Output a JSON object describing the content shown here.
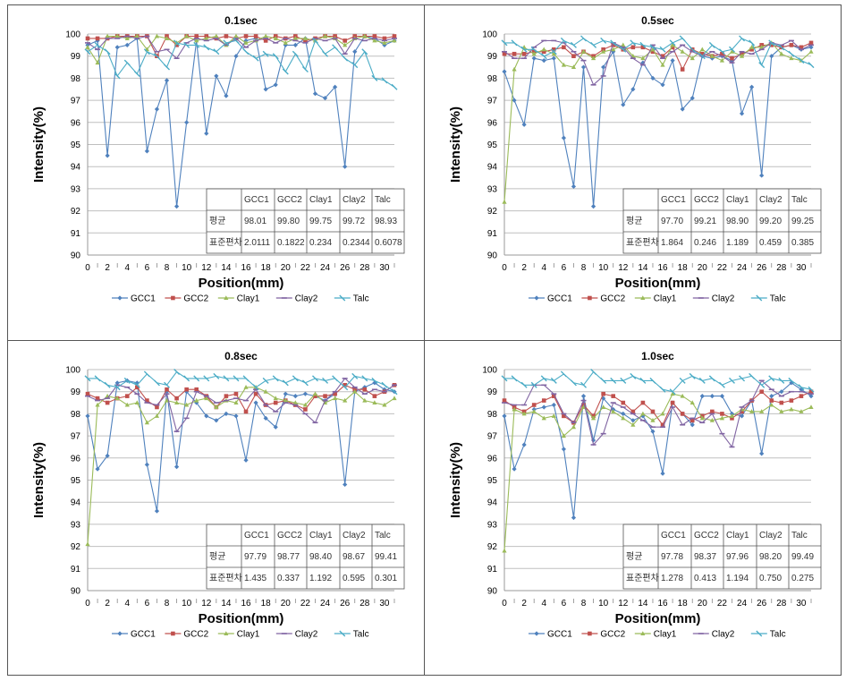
{
  "colors": {
    "GCC1": "#4f81bd",
    "GCC2": "#c0504d",
    "Clay1": "#9bbb59",
    "Clay2": "#8064a2",
    "Talc": "#4bacc6"
  },
  "chart_data": [
    {
      "type": "line",
      "title": "0.1sec",
      "xlabel": "Position(mm)",
      "ylabel": "Intensity(%)",
      "ylim": [
        90,
        100
      ],
      "xlim": [
        0,
        31
      ],
      "x": [
        0,
        1,
        2,
        3,
        4,
        5,
        6,
        7,
        8,
        9,
        10,
        11,
        12,
        13,
        14,
        15,
        16,
        17,
        18,
        19,
        20,
        21,
        22,
        23,
        24,
        25,
        26,
        27,
        28,
        29,
        30,
        31
      ],
      "xticks": [
        0,
        2,
        4,
        6,
        8,
        10,
        12,
        14,
        16,
        18,
        20,
        22,
        24,
        26,
        28,
        30
      ],
      "yticks": [
        90,
        91,
        92,
        93,
        94,
        95,
        96,
        97,
        98,
        99,
        100
      ],
      "grid": true,
      "legend": "bottom",
      "series": [
        {
          "name": "GCC1",
          "values": [
            99.5,
            99.7,
            94.5,
            99.4,
            99.5,
            99.8,
            94.7,
            96.6,
            97.9,
            92.2,
            96.0,
            99.7,
            95.5,
            98.1,
            97.2,
            99.0,
            99.7,
            99.8,
            97.5,
            97.7,
            99.5,
            99.5,
            99.8,
            97.3,
            97.1,
            97.6,
            94.0,
            99.2,
            99.9,
            99.8,
            99.5,
            99.7
          ]
        },
        {
          "name": "GCC2",
          "values": [
            99.8,
            99.8,
            99.8,
            99.9,
            99.9,
            99.9,
            99.9,
            99.0,
            99.9,
            99.5,
            99.9,
            99.9,
            99.9,
            99.8,
            99.9,
            99.8,
            99.9,
            99.9,
            99.7,
            99.9,
            99.8,
            99.9,
            99.7,
            99.8,
            99.9,
            99.9,
            99.7,
            99.9,
            99.9,
            99.9,
            99.8,
            99.9
          ]
        },
        {
          "name": "Clay1",
          "values": [
            99.4,
            98.7,
            99.9,
            99.9,
            99.8,
            99.9,
            99.3,
            99.9,
            99.8,
            99.6,
            99.9,
            99.7,
            99.8,
            99.9,
            99.5,
            99.9,
            99.6,
            99.7,
            99.9,
            99.8,
            99.6,
            99.8,
            99.8,
            99.7,
            99.9,
            99.8,
            99.5,
            99.8,
            99.9,
            99.7,
            99.6,
            99.7
          ]
        },
        {
          "name": "Clay2",
          "values": [
            99.6,
            99.3,
            99.8,
            99.8,
            99.9,
            99.8,
            99.9,
            99.2,
            99.3,
            98.9,
            99.6,
            99.8,
            99.7,
            99.8,
            99.5,
            99.8,
            99.4,
            99.7,
            99.8,
            99.6,
            99.8,
            99.7,
            99.6,
            99.8,
            99.7,
            99.8,
            99.1,
            99.8,
            99.7,
            99.8,
            99.7,
            99.8
          ]
        },
        {
          "name": "Talc",
          "values": [
            99.2,
            99.5,
            99.2,
            98.1,
            98.7,
            98.2,
            99.2,
            99.0,
            98.5,
            99.6,
            99.5,
            99.5,
            99.4,
            99.2,
            99.6,
            99.7,
            99.2,
            98.9,
            99.1,
            99.0,
            98.3,
            99.1,
            98.4,
            99.7,
            99.1,
            99.4,
            98.9,
            98.6,
            99.2,
            98.0,
            97.9,
            97.6
          ]
        }
      ],
      "stats_table": {
        "headers": [
          "",
          "GCC1",
          "GCC2",
          "Clay1",
          "Clay2",
          "Talc"
        ],
        "rows": [
          [
            "평균",
            "98.01",
            "99.80",
            "99.75",
            "99.72",
            "98.93"
          ],
          [
            "표준편차",
            "2.0111",
            "0.1822",
            "0.234",
            "0.2344",
            "0.6078"
          ]
        ]
      }
    },
    {
      "type": "line",
      "title": "0.5sec",
      "xlabel": "Position(mm)",
      "ylabel": "Intensity(%)",
      "ylim": [
        90,
        100
      ],
      "xlim": [
        0,
        31
      ],
      "x": [
        0,
        1,
        2,
        3,
        4,
        5,
        6,
        7,
        8,
        9,
        10,
        11,
        12,
        13,
        14,
        15,
        16,
        17,
        18,
        19,
        20,
        21,
        22,
        23,
        24,
        25,
        26,
        27,
        28,
        29,
        30,
        31
      ],
      "xticks": [
        0,
        2,
        4,
        6,
        8,
        10,
        12,
        14,
        16,
        18,
        20,
        22,
        24,
        26,
        28,
        30
      ],
      "yticks": [
        90,
        91,
        92,
        93,
        94,
        95,
        96,
        97,
        98,
        99,
        100
      ],
      "grid": true,
      "legend": "bottom",
      "series": [
        {
          "name": "GCC1",
          "values": [
            98.3,
            97.0,
            95.9,
            98.9,
            98.8,
            98.9,
            95.3,
            93.1,
            98.5,
            92.2,
            98.5,
            99.2,
            96.8,
            97.5,
            98.7,
            98.0,
            97.7,
            98.8,
            96.6,
            97.1,
            99.0,
            98.9,
            99.0,
            98.8,
            96.4,
            97.6,
            93.6,
            99.0,
            99.4,
            99.5,
            99.3,
            99.4
          ]
        },
        {
          "name": "GCC2",
          "values": [
            99.1,
            99.1,
            99.1,
            99.2,
            99.2,
            99.3,
            99.4,
            99.0,
            99.2,
            99.0,
            99.3,
            99.5,
            99.3,
            99.4,
            99.4,
            99.2,
            99.0,
            99.4,
            98.4,
            99.3,
            99.1,
            99.0,
            99.1,
            98.9,
            99.1,
            99.3,
            99.5,
            99.5,
            99.4,
            99.5,
            99.4,
            99.6
          ]
        },
        {
          "name": "Clay1",
          "values": [
            92.4,
            98.4,
            99.4,
            99.1,
            99.3,
            99.1,
            98.6,
            98.5,
            99.2,
            98.9,
            99.2,
            99.3,
            99.5,
            99.0,
            98.9,
            99.3,
            98.6,
            99.5,
            99.2,
            98.9,
            99.3,
            99.0,
            98.8,
            99.2,
            99.0,
            99.4,
            99.4,
            99.6,
            99.1,
            98.9,
            98.8,
            99.2
          ]
        },
        {
          "name": "Clay2",
          "values": [
            99.2,
            98.9,
            98.9,
            99.4,
            99.7,
            99.7,
            99.6,
            99.2,
            98.8,
            97.7,
            98.1,
            99.6,
            99.4,
            98.9,
            98.6,
            99.5,
            98.9,
            99.2,
            99.5,
            99.2,
            99.0,
            99.2,
            99.0,
            98.7,
            99.2,
            99.1,
            99.3,
            99.6,
            99.5,
            99.7,
            99.3,
            99.5
          ]
        },
        {
          "name": "Talc",
          "values": [
            99.6,
            99.6,
            99.3,
            99.3,
            99.0,
            99.2,
            99.7,
            99.5,
            99.8,
            99.5,
            99.7,
            99.6,
            99.3,
            99.6,
            99.5,
            99.4,
            99.3,
            99.6,
            99.8,
            99.3,
            99.0,
            99.5,
            99.2,
            99.3,
            99.8,
            99.6,
            98.6,
            99.6,
            99.4,
            99.1,
            98.8,
            98.6
          ]
        }
      ],
      "stats_table": {
        "headers": [
          "",
          "GCC1",
          "GCC2",
          "Clay1",
          "Clay2",
          "Talc"
        ],
        "rows": [
          [
            "평균",
            "97.70",
            "99.21",
            "98.90",
            "99.20",
            "99.25"
          ],
          [
            "표준편차",
            "1.864",
            "0.246",
            "1.189",
            "0.459",
            "0.385"
          ]
        ]
      }
    },
    {
      "type": "line",
      "title": "0.8sec",
      "xlabel": "Position(mm)",
      "ylabel": "Intensity(%)",
      "ylim": [
        90,
        100
      ],
      "xlim": [
        0,
        31
      ],
      "x": [
        0,
        1,
        2,
        3,
        4,
        5,
        6,
        7,
        8,
        9,
        10,
        11,
        12,
        13,
        14,
        15,
        16,
        17,
        18,
        19,
        20,
        21,
        22,
        23,
        24,
        25,
        26,
        27,
        28,
        29,
        30,
        31
      ],
      "xticks": [
        0,
        2,
        4,
        6,
        8,
        10,
        12,
        14,
        16,
        18,
        20,
        22,
        24,
        26,
        28,
        30
      ],
      "yticks": [
        90,
        91,
        92,
        93,
        94,
        95,
        96,
        97,
        98,
        99,
        100
      ],
      "grid": true,
      "legend": "bottom",
      "series": [
        {
          "name": "GCC1",
          "values": [
            97.9,
            95.5,
            96.1,
            99.4,
            99.5,
            99.4,
            95.7,
            93.6,
            99.0,
            95.6,
            99.0,
            98.5,
            97.9,
            97.7,
            98.0,
            97.9,
            95.9,
            98.5,
            97.8,
            97.4,
            98.9,
            98.8,
            98.9,
            98.8,
            98.6,
            98.9,
            94.8,
            99.0,
            99.2,
            99.4,
            99.1,
            99.0
          ]
        },
        {
          "name": "GCC2",
          "values": [
            98.9,
            98.7,
            98.5,
            98.7,
            98.8,
            99.2,
            98.6,
            98.3,
            99.1,
            98.7,
            99.1,
            99.1,
            98.8,
            98.3,
            98.8,
            98.9,
            98.1,
            98.9,
            98.4,
            98.5,
            98.6,
            98.4,
            98.2,
            98.8,
            98.8,
            98.9,
            99.3,
            99.1,
            99.1,
            98.8,
            99.0,
            99.3
          ]
        },
        {
          "name": "Clay1",
          "values": [
            92.1,
            98.4,
            98.8,
            98.7,
            98.4,
            98.5,
            97.6,
            97.9,
            98.6,
            98.5,
            98.4,
            98.6,
            98.7,
            98.3,
            98.6,
            98.5,
            99.2,
            99.2,
            99.0,
            98.7,
            98.6,
            98.5,
            98.4,
            98.9,
            98.5,
            98.7,
            98.6,
            99.0,
            98.6,
            98.5,
            98.4,
            98.7
          ]
        },
        {
          "name": "Clay2",
          "values": [
            98.8,
            98.6,
            98.7,
            99.3,
            99.2,
            98.9,
            98.5,
            98.4,
            98.9,
            97.2,
            97.8,
            99.0,
            98.8,
            98.5,
            98.6,
            98.7,
            98.6,
            99.1,
            98.4,
            98.1,
            98.5,
            98.4,
            98.0,
            97.6,
            98.6,
            99.0,
            99.6,
            99.2,
            98.9,
            99.1,
            99.0,
            99.3
          ]
        },
        {
          "name": "Talc",
          "values": [
            99.6,
            99.6,
            99.3,
            99.2,
            99.5,
            99.3,
            99.8,
            99.4,
            99.3,
            99.9,
            99.6,
            99.6,
            99.6,
            99.7,
            99.6,
            99.6,
            99.6,
            99.2,
            99.5,
            99.6,
            99.4,
            99.6,
            99.4,
            99.6,
            99.5,
            99.6,
            99.2,
            99.7,
            99.6,
            99.5,
            99.3,
            99.0
          ]
        }
      ],
      "stats_table": {
        "headers": [
          "",
          "GCC1",
          "GCC2",
          "Clay1",
          "Clay2",
          "Talc"
        ],
        "rows": [
          [
            "평균",
            "97.79",
            "98.77",
            "98.40",
            "98.67",
            "99.41"
          ],
          [
            "표준편차",
            "1.435",
            "0.337",
            "1.192",
            "0.595",
            "0.301"
          ]
        ]
      }
    },
    {
      "type": "line",
      "title": "1.0sec",
      "xlabel": "Position(mm)",
      "ylabel": "Intensity(%)",
      "ylim": [
        90,
        100
      ],
      "xlim": [
        0,
        31
      ],
      "x": [
        0,
        1,
        2,
        3,
        4,
        5,
        6,
        7,
        8,
        9,
        10,
        11,
        12,
        13,
        14,
        15,
        16,
        17,
        18,
        19,
        20,
        21,
        22,
        23,
        24,
        25,
        26,
        27,
        28,
        29,
        30,
        31
      ],
      "xticks": [
        0,
        2,
        4,
        6,
        8,
        10,
        12,
        14,
        16,
        18,
        20,
        22,
        24,
        26,
        28,
        30
      ],
      "yticks": [
        90,
        91,
        92,
        93,
        94,
        95,
        96,
        97,
        98,
        99,
        100
      ],
      "grid": true,
      "legend": "bottom",
      "series": [
        {
          "name": "GCC1",
          "values": [
            97.9,
            95.5,
            96.6,
            98.2,
            98.3,
            98.4,
            96.4,
            93.3,
            98.8,
            96.8,
            98.7,
            98.2,
            98.0,
            97.7,
            97.9,
            97.2,
            95.3,
            98.5,
            98.0,
            97.5,
            98.8,
            98.8,
            98.8,
            98.0,
            97.9,
            98.6,
            96.2,
            98.8,
            99.0,
            99.4,
            99.1,
            98.8
          ]
        },
        {
          "name": "GCC2",
          "values": [
            98.6,
            98.3,
            98.1,
            98.4,
            98.6,
            98.8,
            97.9,
            97.6,
            98.4,
            97.9,
            98.9,
            98.8,
            98.5,
            98.1,
            98.5,
            98.1,
            97.5,
            98.5,
            98.0,
            97.7,
            97.9,
            98.1,
            98.0,
            97.8,
            98.1,
            98.6,
            99.0,
            98.6,
            98.5,
            98.6,
            98.8,
            99.0
          ]
        },
        {
          "name": "Clay1",
          "values": [
            91.8,
            98.2,
            98.0,
            98.1,
            97.8,
            97.9,
            97.0,
            97.4,
            98.3,
            97.8,
            98.3,
            98.1,
            97.8,
            97.5,
            98.0,
            97.7,
            98.0,
            98.9,
            98.8,
            98.5,
            97.8,
            97.7,
            97.8,
            97.9,
            98.2,
            98.1,
            98.1,
            98.4,
            98.1,
            98.2,
            98.1,
            98.3
          ]
        },
        {
          "name": "Clay2",
          "values": [
            98.5,
            98.4,
            98.4,
            99.3,
            99.3,
            98.9,
            98.0,
            97.6,
            98.6,
            96.6,
            97.1,
            98.5,
            98.3,
            98.0,
            97.7,
            97.4,
            97.4,
            98.3,
            97.5,
            97.8,
            97.6,
            98.0,
            97.1,
            96.5,
            98.3,
            98.6,
            99.5,
            99.1,
            98.8,
            99.0,
            99.0,
            98.9
          ]
        },
        {
          "name": "Talc",
          "values": [
            99.6,
            99.6,
            99.3,
            99.3,
            99.6,
            99.5,
            99.8,
            99.4,
            99.3,
            99.9,
            99.5,
            99.5,
            99.5,
            99.7,
            99.5,
            99.5,
            99.1,
            99.0,
            99.5,
            99.7,
            99.5,
            99.6,
            99.3,
            99.5,
            99.6,
            99.7,
            99.3,
            99.6,
            99.5,
            99.5,
            99.2,
            99.1
          ]
        }
      ],
      "stats_table": {
        "headers": [
          "",
          "GCC1",
          "GCC2",
          "Clay1",
          "Clay2",
          "Talc"
        ],
        "rows": [
          [
            "평균",
            "97.78",
            "98.37",
            "97.96",
            "98.20",
            "99.49"
          ],
          [
            "표준편차",
            "1.278",
            "0.413",
            "1.194",
            "0.750",
            "0.275"
          ]
        ]
      }
    }
  ]
}
